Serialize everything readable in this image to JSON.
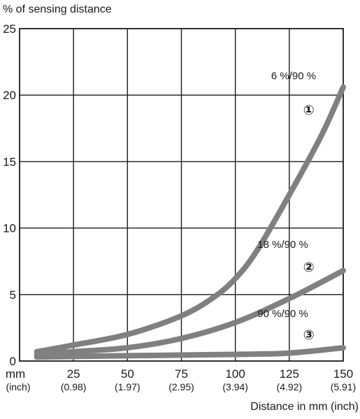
{
  "chart_data": {
    "type": "line",
    "ylabel": "% of sensing distance",
    "xlabel": "Distance in mm (inch)",
    "xlim": [
      0,
      150
    ],
    "ylim": [
      0,
      25
    ],
    "grid": true,
    "x_unit_label": "mm",
    "x_unit_sub_label": "(inch)",
    "x_ticks": [
      {
        "value": 25,
        "label": "25",
        "sub": "(0.98)"
      },
      {
        "value": 50,
        "label": "50",
        "sub": "(1.97)"
      },
      {
        "value": 75,
        "label": "75",
        "sub": "(2.95)"
      },
      {
        "value": 100,
        "label": "100",
        "sub": "(3.94)"
      },
      {
        "value": 125,
        "label": "125",
        "sub": "(4.92)"
      },
      {
        "value": 150,
        "label": "150",
        "sub": "(5.91)"
      }
    ],
    "y_ticks": [
      {
        "value": 0,
        "label": "0"
      },
      {
        "value": 5,
        "label": "5"
      },
      {
        "value": 10,
        "label": "10"
      },
      {
        "value": 15,
        "label": "15"
      },
      {
        "value": 20,
        "label": "20"
      },
      {
        "value": 25,
        "label": "25"
      }
    ],
    "series_color": "#808080",
    "series": [
      {
        "name": "6 %/90 %",
        "marker": "①",
        "label_at": [
          127,
          21.2
        ],
        "marker_at": [
          134,
          18.9
        ],
        "x": [
          8,
          25,
          50,
          75,
          90,
          100,
          110,
          125,
          140,
          150
        ],
        "y": [
          0.7,
          1.2,
          2.0,
          3.4,
          4.8,
          6.2,
          8.3,
          12.5,
          17.0,
          20.6
        ]
      },
      {
        "name": "18 %/90 %",
        "marker": "②",
        "label_at": [
          122,
          8.5
        ],
        "marker_at": [
          134,
          7.1
        ],
        "x": [
          8,
          25,
          50,
          75,
          100,
          125,
          150
        ],
        "y": [
          0.5,
          0.7,
          1.0,
          1.7,
          2.9,
          4.7,
          6.8
        ]
      },
      {
        "name": "90 %/90 %",
        "marker": "③",
        "label_at": [
          122,
          3.3
        ],
        "marker_at": [
          134,
          2.0
        ],
        "x": [
          8,
          50,
          100,
          125,
          150
        ],
        "y": [
          0.3,
          0.4,
          0.5,
          0.6,
          1.0
        ]
      }
    ]
  }
}
